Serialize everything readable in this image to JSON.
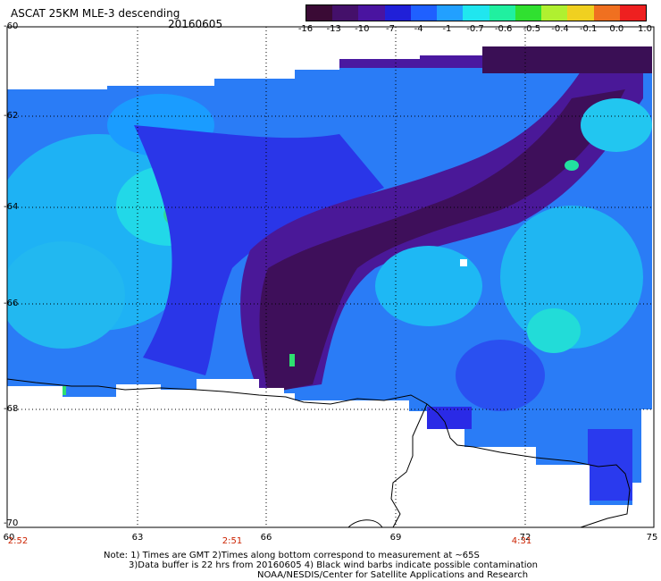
{
  "title": "ASCAT 25KM MLE-3 descending",
  "date": "20160605",
  "colorbar": {
    "labels": [
      "-16",
      "-13",
      "-10",
      "-7",
      "-4",
      "-1",
      "-0.7",
      "-0.6",
      "-0.5",
      "-0.4",
      "-0.1",
      "0.0",
      "1.0"
    ],
    "colors": [
      "#3a0a35",
      "#44106a",
      "#4a14a0",
      "#2020d8",
      "#1f60ff",
      "#22a0ff",
      "#20e6ef",
      "#20f0a0",
      "#30e030",
      "#b0f030",
      "#f0d020",
      "#f07020",
      "#ee2020"
    ]
  },
  "map": {
    "lat_labels": [
      "-60",
      "-62",
      "-64",
      "-66",
      "-68",
      "-70"
    ],
    "lon_labels": [
      "60",
      "63",
      "66",
      "69",
      "72",
      "75"
    ],
    "time_labels": [
      "2:52",
      "2:51",
      "4:31"
    ],
    "colors": {
      "dark_purple": "#3d0f4a",
      "purple": "#4c167f",
      "blue": "#2a2ae6",
      "light_blue": "#2490ff",
      "cyan": "#1ec8f2",
      "green": "#2cd890",
      "coast": "#000000"
    }
  },
  "notes": [
    "Note: 1) Times are GMT 2)Times along bottom correspond to measurement at ~65S",
    "3)Data buffer is 22 hrs from 20160605 4) Black wind barbs indicate possible contamination",
    "NOAA/NESDIS/Center for Satellite Applications and Research"
  ]
}
